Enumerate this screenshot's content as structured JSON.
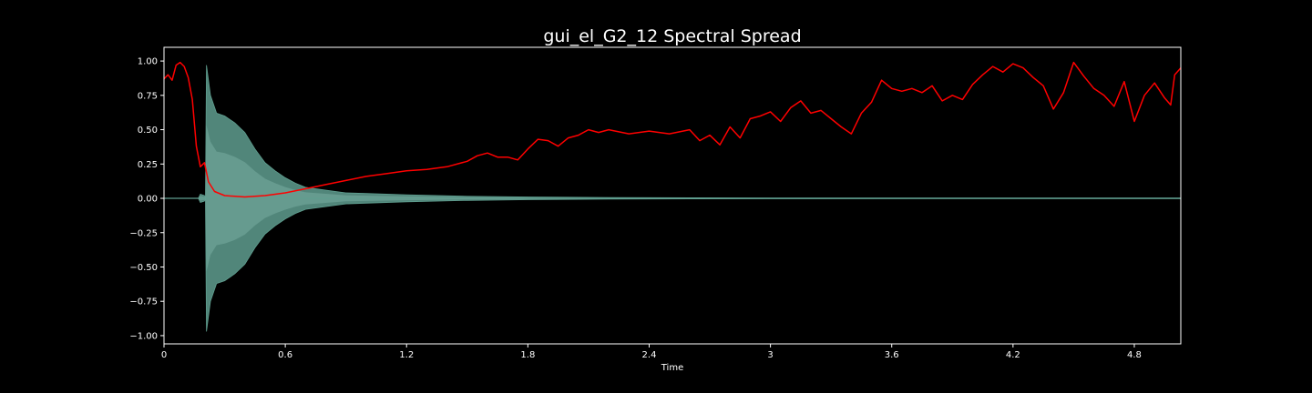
{
  "chart_data": {
    "type": "line",
    "title": "gui_el_G2_12 Spectral Spread",
    "xlabel": "Time",
    "ylabel": "",
    "xlim": [
      0,
      5.03
    ],
    "ylim": [
      -1.06,
      1.1
    ],
    "x_ticks": [
      {
        "value": 0,
        "label": "0"
      },
      {
        "value": 0.6,
        "label": "0.6"
      },
      {
        "value": 1.2,
        "label": "1.2"
      },
      {
        "value": 1.8,
        "label": "1.8"
      },
      {
        "value": 2.4,
        "label": "2.4"
      },
      {
        "value": 3.0,
        "label": "3"
      },
      {
        "value": 3.6,
        "label": "3.6"
      },
      {
        "value": 4.2,
        "label": "4.2"
      },
      {
        "value": 4.8,
        "label": "4.8"
      }
    ],
    "y_ticks": [
      {
        "value": 1.0,
        "label": "1.00"
      },
      {
        "value": 0.75,
        "label": "0.75"
      },
      {
        "value": 0.5,
        "label": "0.50"
      },
      {
        "value": 0.25,
        "label": "0.25"
      },
      {
        "value": 0.0,
        "label": "0.00"
      },
      {
        "value": -0.25,
        "label": "−0.25"
      },
      {
        "value": -0.5,
        "label": "−0.50"
      },
      {
        "value": -0.75,
        "label": "−0.75"
      },
      {
        "value": -1.0,
        "label": "−1.00"
      }
    ],
    "grid": false,
    "background_color": "#000000",
    "axes_color": "#ffffff",
    "waveform": {
      "color": "#5f9e8f",
      "envelope": [
        [
          0.0,
          0.0
        ],
        [
          0.17,
          0.0
        ],
        [
          0.18,
          0.03
        ],
        [
          0.2,
          0.02
        ],
        [
          0.205,
          0.0
        ],
        [
          0.21,
          0.97
        ],
        [
          0.23,
          0.75
        ],
        [
          0.26,
          0.62
        ],
        [
          0.3,
          0.6
        ],
        [
          0.35,
          0.55
        ],
        [
          0.4,
          0.48
        ],
        [
          0.45,
          0.36
        ],
        [
          0.5,
          0.26
        ],
        [
          0.55,
          0.2
        ],
        [
          0.6,
          0.15
        ],
        [
          0.65,
          0.11
        ],
        [
          0.7,
          0.08
        ],
        [
          0.8,
          0.06
        ],
        [
          0.9,
          0.04
        ],
        [
          1.0,
          0.035
        ],
        [
          1.2,
          0.025
        ],
        [
          1.5,
          0.015
        ],
        [
          1.8,
          0.01
        ],
        [
          2.2,
          0.006
        ],
        [
          2.6,
          0.004
        ],
        [
          3.0,
          0.003
        ],
        [
          4.0,
          0.002
        ],
        [
          5.03,
          0.002
        ]
      ]
    },
    "series": [
      {
        "color": "#ff0000",
        "points": [
          [
            0.0,
            0.87
          ],
          [
            0.02,
            0.9
          ],
          [
            0.04,
            0.86
          ],
          [
            0.06,
            0.97
          ],
          [
            0.08,
            0.99
          ],
          [
            0.1,
            0.96
          ],
          [
            0.12,
            0.88
          ],
          [
            0.14,
            0.72
          ],
          [
            0.16,
            0.38
          ],
          [
            0.18,
            0.23
          ],
          [
            0.2,
            0.26
          ],
          [
            0.22,
            0.12
          ],
          [
            0.25,
            0.05
          ],
          [
            0.3,
            0.02
          ],
          [
            0.4,
            0.01
          ],
          [
            0.5,
            0.02
          ],
          [
            0.6,
            0.04
          ],
          [
            0.7,
            0.07
          ],
          [
            0.8,
            0.1
          ],
          [
            0.9,
            0.13
          ],
          [
            1.0,
            0.16
          ],
          [
            1.1,
            0.18
          ],
          [
            1.2,
            0.2
          ],
          [
            1.3,
            0.21
          ],
          [
            1.4,
            0.23
          ],
          [
            1.5,
            0.27
          ],
          [
            1.55,
            0.31
          ],
          [
            1.6,
            0.33
          ],
          [
            1.65,
            0.3
          ],
          [
            1.7,
            0.3
          ],
          [
            1.75,
            0.28
          ],
          [
            1.8,
            0.36
          ],
          [
            1.85,
            0.43
          ],
          [
            1.9,
            0.42
          ],
          [
            1.95,
            0.38
          ],
          [
            2.0,
            0.44
          ],
          [
            2.05,
            0.46
          ],
          [
            2.1,
            0.5
          ],
          [
            2.15,
            0.48
          ],
          [
            2.2,
            0.5
          ],
          [
            2.3,
            0.47
          ],
          [
            2.4,
            0.49
          ],
          [
            2.5,
            0.47
          ],
          [
            2.6,
            0.5
          ],
          [
            2.65,
            0.42
          ],
          [
            2.7,
            0.46
          ],
          [
            2.75,
            0.39
          ],
          [
            2.8,
            0.52
          ],
          [
            2.85,
            0.44
          ],
          [
            2.9,
            0.58
          ],
          [
            2.95,
            0.6
          ],
          [
            3.0,
            0.63
          ],
          [
            3.05,
            0.56
          ],
          [
            3.1,
            0.66
          ],
          [
            3.15,
            0.71
          ],
          [
            3.2,
            0.62
          ],
          [
            3.25,
            0.64
          ],
          [
            3.3,
            0.58
          ],
          [
            3.35,
            0.52
          ],
          [
            3.4,
            0.47
          ],
          [
            3.45,
            0.62
          ],
          [
            3.5,
            0.7
          ],
          [
            3.55,
            0.86
          ],
          [
            3.6,
            0.8
          ],
          [
            3.65,
            0.78
          ],
          [
            3.7,
            0.8
          ],
          [
            3.75,
            0.77
          ],
          [
            3.8,
            0.82
          ],
          [
            3.85,
            0.71
          ],
          [
            3.9,
            0.75
          ],
          [
            3.95,
            0.72
          ],
          [
            4.0,
            0.83
          ],
          [
            4.05,
            0.9
          ],
          [
            4.1,
            0.96
          ],
          [
            4.15,
            0.92
          ],
          [
            4.2,
            0.98
          ],
          [
            4.25,
            0.95
          ],
          [
            4.3,
            0.88
          ],
          [
            4.35,
            0.82
          ],
          [
            4.4,
            0.65
          ],
          [
            4.45,
            0.77
          ],
          [
            4.5,
            0.99
          ],
          [
            4.55,
            0.89
          ],
          [
            4.6,
            0.8
          ],
          [
            4.65,
            0.75
          ],
          [
            4.7,
            0.67
          ],
          [
            4.75,
            0.85
          ],
          [
            4.8,
            0.56
          ],
          [
            4.85,
            0.75
          ],
          [
            4.9,
            0.84
          ],
          [
            4.95,
            0.73
          ],
          [
            4.98,
            0.68
          ],
          [
            5.0,
            0.9
          ],
          [
            5.03,
            0.95
          ]
        ]
      }
    ]
  }
}
